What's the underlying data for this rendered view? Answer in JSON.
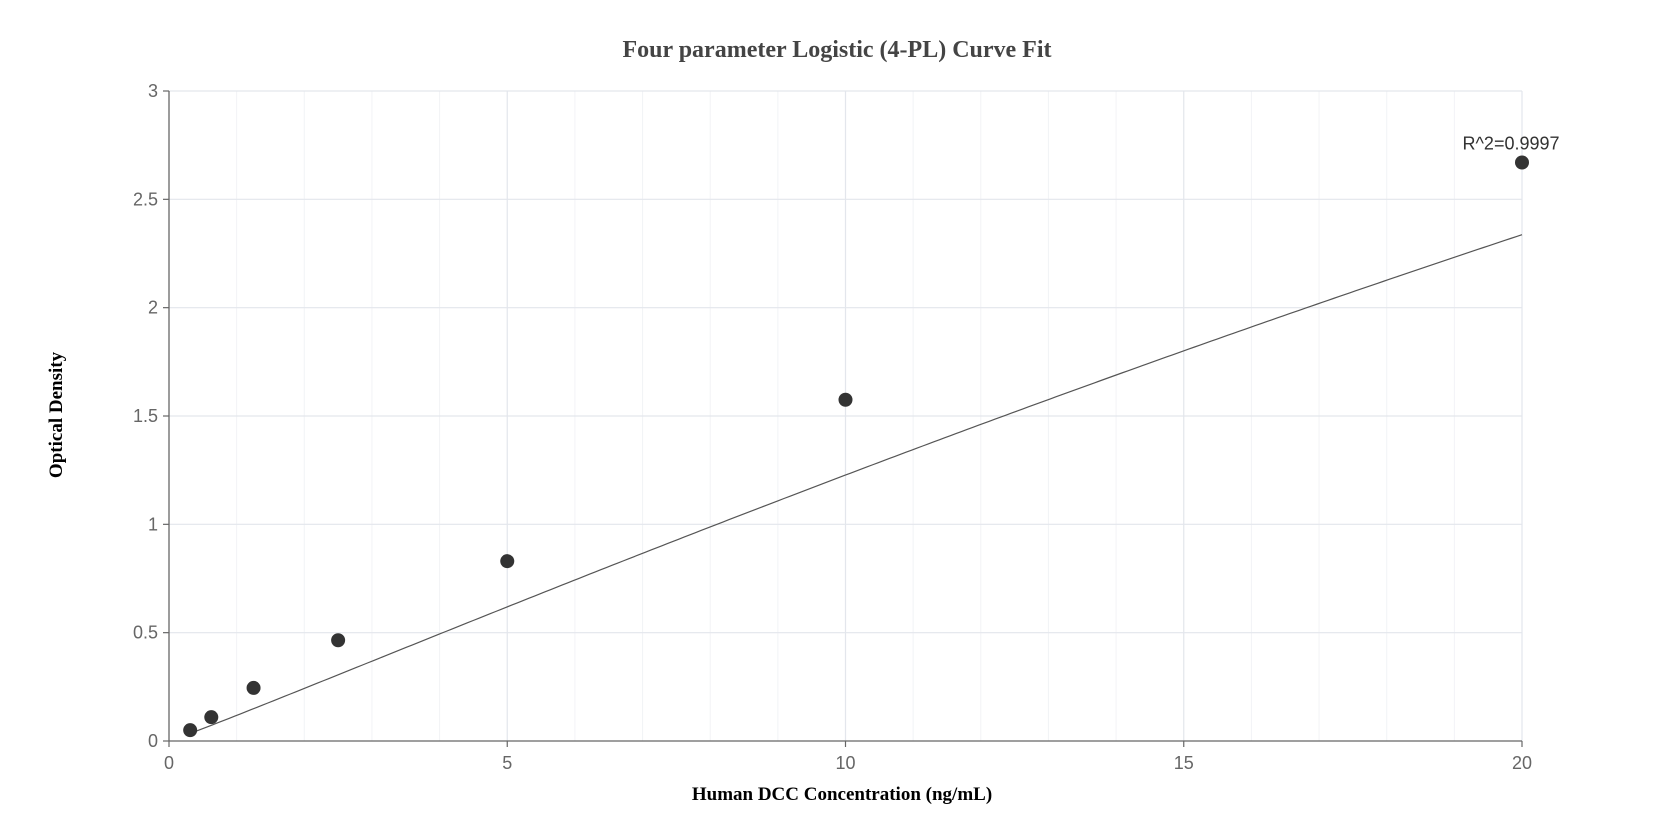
{
  "chart_data": {
    "type": "scatter",
    "title": "Four parameter Logistic (4-PL) Curve Fit",
    "xlabel": "Human DCC Concentration (ng/mL)",
    "ylabel": "Optical Density",
    "xlim": [
      0,
      20
    ],
    "ylim": [
      0,
      3
    ],
    "x_ticks": [
      "0",
      "5",
      "10",
      "15",
      "20"
    ],
    "y_ticks": [
      "0",
      "0.5",
      "1",
      "1.5",
      "2",
      "2.5",
      "3"
    ],
    "grid": true,
    "points": [
      {
        "x": 0.313,
        "y": 0.05
      },
      {
        "x": 0.625,
        "y": 0.11
      },
      {
        "x": 1.25,
        "y": 0.245
      },
      {
        "x": 2.5,
        "y": 0.465
      },
      {
        "x": 5,
        "y": 0.83
      },
      {
        "x": 10,
        "y": 1.575
      },
      {
        "x": 20,
        "y": 2.67
      }
    ],
    "fit_curve": {
      "model": "4-PL",
      "A": 0.0,
      "B": 1.05,
      "C": 100,
      "D": 15
    },
    "annotations": [
      {
        "text": "R^2=0.9997",
        "x": 20,
        "y": 2.67
      }
    ],
    "colors": {
      "point": "#333333",
      "curve": "#555555",
      "grid_major": "#e3e6ec",
      "grid_minor": "#f2f3f6",
      "axis": "#666666"
    }
  }
}
